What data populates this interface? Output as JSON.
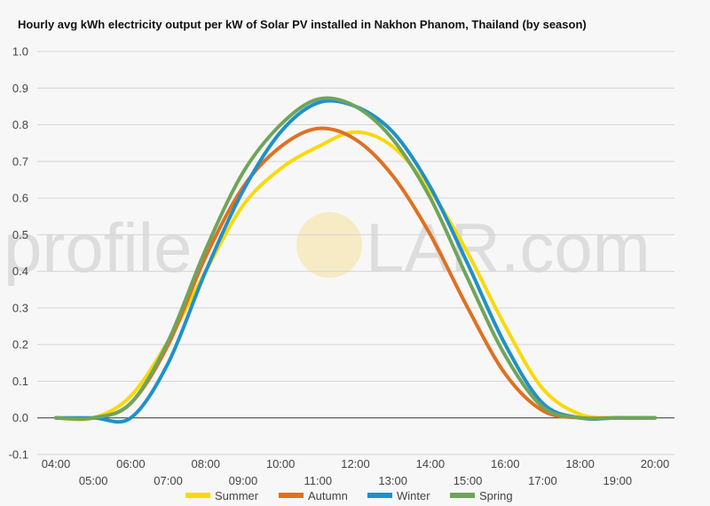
{
  "chart_data": {
    "type": "line",
    "title": "Hourly avg kWh electricity output per kW of Solar PV installed in Nakhon Phanom, Thailand (by season)",
    "watermark": {
      "left": "profile",
      "right": "LAR.com"
    },
    "xlabel": "",
    "ylabel": "",
    "ylim": [
      -0.1,
      1.0
    ],
    "yticks": [
      "-0.1",
      "0.0",
      "0.1",
      "0.2",
      "0.3",
      "0.4",
      "0.5",
      "0.6",
      "0.7",
      "0.8",
      "0.9",
      "1.0"
    ],
    "x": [
      "04:00",
      "05:00",
      "06:00",
      "07:00",
      "08:00",
      "09:00",
      "10:00",
      "11:00",
      "12:00",
      "13:00",
      "14:00",
      "15:00",
      "16:00",
      "17:00",
      "18:00",
      "19:00",
      "20:00"
    ],
    "grid": true,
    "legend_position": "bottom",
    "series": [
      {
        "name": "Summer",
        "color": "#f9d90c",
        "values": [
          0.0,
          0.0,
          0.06,
          0.21,
          0.4,
          0.58,
          0.68,
          0.74,
          0.78,
          0.74,
          0.62,
          0.45,
          0.25,
          0.08,
          0.01,
          0.0,
          0.0
        ]
      },
      {
        "name": "Autumn",
        "color": "#e07020",
        "values": [
          0.0,
          0.0,
          0.04,
          0.2,
          0.44,
          0.63,
          0.74,
          0.79,
          0.76,
          0.66,
          0.5,
          0.3,
          0.12,
          0.02,
          0.0,
          0.0,
          0.0
        ]
      },
      {
        "name": "Winter",
        "color": "#2090c8",
        "values": [
          0.0,
          0.0,
          0.0,
          0.15,
          0.4,
          0.62,
          0.78,
          0.86,
          0.85,
          0.78,
          0.63,
          0.42,
          0.2,
          0.04,
          0.0,
          0.0,
          0.0
        ]
      },
      {
        "name": "Spring",
        "color": "#6fa55a",
        "values": [
          0.0,
          0.0,
          0.04,
          0.21,
          0.46,
          0.67,
          0.8,
          0.87,
          0.85,
          0.76,
          0.6,
          0.38,
          0.17,
          0.03,
          0.0,
          0.0,
          0.0
        ]
      }
    ]
  }
}
